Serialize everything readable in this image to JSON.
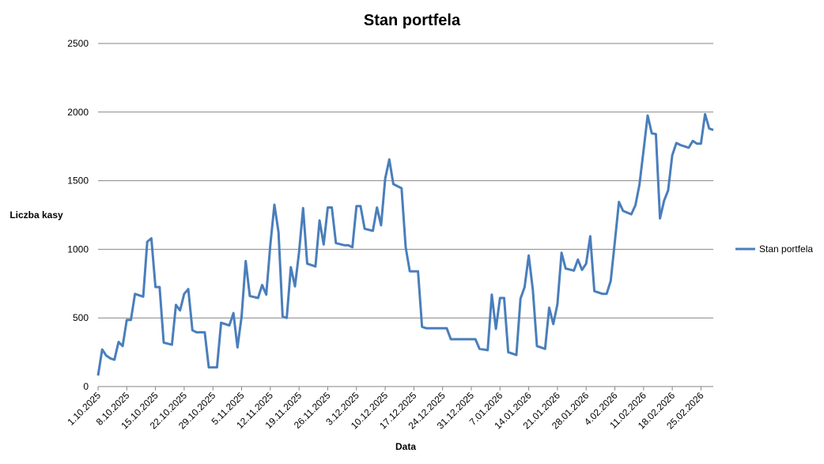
{
  "chart_data": {
    "type": "line",
    "title": "Stan portfela",
    "xlabel": "Data",
    "ylabel": "Liczba kasy",
    "x": [
      "1.10.2025",
      "2.10.2025",
      "3.10.2025",
      "4.10.2025",
      "5.10.2025",
      "6.10.2025",
      "7.10.2025",
      "8.10.2025",
      "9.10.2025",
      "10.10.2025",
      "12.10.2025",
      "13.10.2025",
      "14.10.2025",
      "15.10.2025",
      "16.10.2025",
      "17.10.2025",
      "19.10.2025",
      "20.10.2025",
      "21.10.2025",
      "22.10.2025",
      "23.10.2025",
      "24.10.2025",
      "25.10.2025",
      "27.10.2025",
      "28.10.2025",
      "30.10.2025",
      "31.10.2025",
      "2.11.2025",
      "3.11.2025",
      "4.11.2025",
      "5.11.2025",
      "6.11.2025",
      "7.11.2025",
      "9.11.2025",
      "10.11.2025",
      "11.11.2025",
      "12.11.2025",
      "13.11.2025",
      "14.11.2025",
      "15.11.2025",
      "16.11.2025",
      "17.11.2025",
      "18.11.2025",
      "19.11.2025",
      "20.11.2025",
      "21.11.2025",
      "23.11.2025",
      "24.11.2025",
      "25.11.2025",
      "26.11.2025",
      "27.11.2025",
      "28.11.2025",
      "30.11.2025",
      "1.12.2025",
      "2.12.2025",
      "3.12.2025",
      "4.12.2025",
      "5.12.2025",
      "7.12.2025",
      "8.12.2025",
      "9.12.2025",
      "10.12.2025",
      "11.12.2025",
      "12.12.2025",
      "14.12.2025",
      "15.12.2025",
      "16.12.2025",
      "18.12.2025",
      "19.12.2025",
      "20.12.2025",
      "25.12.2025",
      "26.12.2025",
      "1.01.2026",
      "2.01.2026",
      "4.01.2026",
      "5.01.2026",
      "6.01.2026",
      "7.01.2026",
      "8.01.2026",
      "9.01.2026",
      "11.01.2026",
      "12.01.2026",
      "13.01.2026",
      "14.01.2026",
      "15.01.2026",
      "16.01.2026",
      "18.01.2026",
      "19.01.2026",
      "20.01.2026",
      "21.01.2026",
      "22.01.2026",
      "23.01.2026",
      "25.01.2026",
      "26.01.2026",
      "27.01.2026",
      "28.01.2026",
      "29.01.2026",
      "30.01.2026",
      "1.02.2026",
      "2.02.2026",
      "3.02.2026",
      "4.02.2026",
      "5.02.2026",
      "6.02.2026",
      "8.02.2026",
      "9.02.2026",
      "10.02.2026",
      "11.02.2026",
      "12.02.2026",
      "13.02.2026",
      "14.02.2026",
      "15.02.2026",
      "16.02.2026",
      "17.02.2026",
      "18.02.2026",
      "19.02.2026",
      "20.02.2026",
      "21.02.2026",
      "22.02.2026",
      "23.02.2026",
      "24.02.2026",
      "25.02.2026",
      "26.02.2026",
      "27.02.2026",
      "28.02.2026"
    ],
    "series": [
      {
        "name": "Stan portfela",
        "color": "#4a7ebb",
        "values": [
          80,
          270,
          225,
          205,
          195,
          325,
          295,
          485,
          485,
          675,
          655,
          1055,
          1080,
          725,
          725,
          320,
          305,
          595,
          555,
          675,
          710,
          410,
          395,
          395,
          140,
          140,
          465,
          445,
          535,
          285,
          510,
          915,
          660,
          645,
          740,
          670,
          1030,
          1325,
          1125,
          510,
          500,
          870,
          730,
          975,
          1300,
          895,
          875,
          1210,
          1035,
          1305,
          1305,
          1045,
          1030,
          1030,
          1015,
          1315,
          1315,
          1150,
          1135,
          1305,
          1175,
          1515,
          1655,
          1475,
          1445,
          1015,
          840,
          840,
          435,
          425,
          425,
          345,
          345,
          275,
          265,
          670,
          420,
          645,
          645,
          250,
          230,
          640,
          725,
          955,
          705,
          295,
          275,
          575,
          455,
          600,
          975,
          860,
          845,
          925,
          850,
          895,
          1095,
          695,
          675,
          675,
          770,
          1055,
          1345,
          1280,
          1255,
          1320,
          1470,
          1720,
          1975,
          1845,
          1840,
          1225,
          1355,
          1430,
          1685,
          1775,
          1760,
          1750,
          1740,
          1790,
          1770,
          1770,
          1985,
          1880,
          1870
        ]
      }
    ],
    "xlim": [
      "1.10.2025",
      "28.02.2026"
    ],
    "xticks": [
      "1.10.2025",
      "8.10.2025",
      "15.10.2025",
      "22.10.2025",
      "29.10.2025",
      "5.11.2025",
      "12.11.2025",
      "19.11.2025",
      "26.11.2025",
      "3.12.2025",
      "10.12.2025",
      "17.12.2025",
      "24.12.2025",
      "31.12.2025",
      "7.01.2026",
      "14.01.2026",
      "21.01.2026",
      "28.01.2026",
      "4.02.2026",
      "11.02.2026",
      "18.02.2026",
      "25.02.2026"
    ],
    "ylim": [
      0,
      2500
    ],
    "yticks": [
      0,
      500,
      1000,
      1500,
      2000,
      2500
    ],
    "grid": true,
    "legend": "right"
  }
}
